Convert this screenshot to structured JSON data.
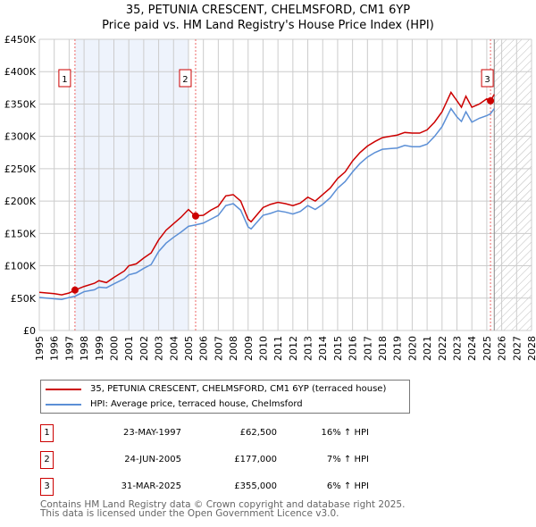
{
  "chart_data": {
    "type": "line",
    "title": "35, PETUNIA CRESCENT, CHELMSFORD, CM1 6YP",
    "subtitle": "Price paid vs. HM Land Registry's House Price Index (HPI)",
    "xlim": [
      1995,
      2028
    ],
    "ylim": [
      0,
      450000
    ],
    "yticks": [
      {
        "v": 0,
        "label": "£0"
      },
      {
        "v": 50000,
        "label": "£50K"
      },
      {
        "v": 100000,
        "label": "£100K"
      },
      {
        "v": 150000,
        "label": "£150K"
      },
      {
        "v": 200000,
        "label": "£200K"
      },
      {
        "v": 250000,
        "label": "£250K"
      },
      {
        "v": 300000,
        "label": "£300K"
      },
      {
        "v": 350000,
        "label": "£350K"
      },
      {
        "v": 400000,
        "label": "£400K"
      },
      {
        "v": 450000,
        "label": "£450K"
      }
    ],
    "xticks": [
      "1995",
      "1996",
      "1997",
      "1998",
      "1999",
      "2000",
      "2001",
      "2002",
      "2003",
      "2004",
      "2005",
      "2006",
      "2007",
      "2008",
      "2009",
      "2010",
      "2011",
      "2012",
      "2013",
      "2014",
      "2015",
      "2016",
      "2017",
      "2018",
      "2019",
      "2020",
      "2021",
      "2022",
      "2023",
      "2024",
      "2025",
      "2026",
      "2027",
      "2028"
    ],
    "shaded_range": [
      1997.4,
      2005.0
    ],
    "forecast_from": 2025.5,
    "series": [
      {
        "name": "35, PETUNIA CRESCENT, CHELMSFORD, CM1 6YP (terraced house)",
        "color": "#cc0000",
        "x": [
          1995,
          1996,
          1996.5,
          1997,
          1997.4,
          1998,
          1998.7,
          1999,
          1999.5,
          2000,
          2000.7,
          2001,
          2001.5,
          2002,
          2002.5,
          2003,
          2003.5,
          2004,
          2004.5,
          2005,
          2005.45,
          2006,
          2006.5,
          2007,
          2007.5,
          2008,
          2008.5,
          2009,
          2009.2,
          2010,
          2010.5,
          2011,
          2011.5,
          2012,
          2012.5,
          2013,
          2013.5,
          2014,
          2014.5,
          2015,
          2015.5,
          2016,
          2016.5,
          2017,
          2017.5,
          2018,
          2018.5,
          2019,
          2019.5,
          2020,
          2020.5,
          2021,
          2021.5,
          2022,
          2022.6,
          2023,
          2023.3,
          2023.6,
          2024,
          2024.5,
          2025,
          2025.25,
          2025.5
        ],
        "y": [
          59000,
          57000,
          55000,
          58000,
          62500,
          68000,
          73000,
          77000,
          74000,
          82000,
          92000,
          100000,
          103000,
          112000,
          120000,
          140000,
          155000,
          165000,
          175000,
          187000,
          177000,
          178000,
          186000,
          192000,
          208000,
          210000,
          200000,
          172000,
          168000,
          190000,
          195000,
          198000,
          196000,
          193000,
          197000,
          206000,
          200000,
          210000,
          220000,
          235000,
          245000,
          262000,
          275000,
          285000,
          292000,
          298000,
          300000,
          302000,
          306000,
          305000,
          305000,
          310000,
          322000,
          338000,
          368000,
          355000,
          345000,
          362000,
          345000,
          350000,
          358000,
          355000,
          365000
        ]
      },
      {
        "name": "HPI: Average price, terraced house, Chelmsford",
        "color": "#5b8fd6",
        "x": [
          1995,
          1996,
          1996.5,
          1997,
          1997.4,
          1998,
          1998.7,
          1999,
          1999.5,
          2000,
          2000.7,
          2001,
          2001.5,
          2002,
          2002.5,
          2003,
          2003.5,
          2004,
          2004.5,
          2005,
          2005.45,
          2006,
          2006.5,
          2007,
          2007.5,
          2008,
          2008.5,
          2009,
          2009.2,
          2010,
          2010.5,
          2011,
          2011.5,
          2012,
          2012.5,
          2013,
          2013.5,
          2014,
          2014.5,
          2015,
          2015.5,
          2016,
          2016.5,
          2017,
          2017.5,
          2018,
          2018.5,
          2019,
          2019.5,
          2020,
          2020.5,
          2021,
          2021.5,
          2022,
          2022.6,
          2023,
          2023.3,
          2023.6,
          2024,
          2024.5,
          2025,
          2025.25,
          2025.5
        ],
        "y": [
          51000,
          49000,
          48000,
          51000,
          53000,
          60000,
          63000,
          67000,
          66000,
          72000,
          80000,
          86000,
          89000,
          96000,
          102000,
          122000,
          135000,
          144000,
          152000,
          161000,
          163000,
          166000,
          172000,
          178000,
          193000,
          196000,
          186000,
          160000,
          157000,
          178000,
          181000,
          185000,
          183000,
          180000,
          184000,
          193000,
          187000,
          195000,
          205000,
          220000,
          230000,
          245000,
          258000,
          268000,
          275000,
          280000,
          281000,
          282000,
          286000,
          284000,
          284000,
          288000,
          300000,
          315000,
          343000,
          330000,
          323000,
          338000,
          322000,
          328000,
          332000,
          335000,
          343000
        ]
      }
    ],
    "sales": [
      {
        "label": "1",
        "x": 1997.39,
        "y": 62500
      },
      {
        "label": "2",
        "x": 2005.48,
        "y": 177000
      },
      {
        "label": "3",
        "x": 2025.25,
        "y": 355000
      }
    ]
  },
  "table": [
    {
      "num": "1",
      "date": "23-MAY-1997",
      "price": "£62,500",
      "hpi": "16% ↑ HPI"
    },
    {
      "num": "2",
      "date": "24-JUN-2005",
      "price": "£177,000",
      "hpi": "7% ↑ HPI"
    },
    {
      "num": "3",
      "date": "31-MAR-2025",
      "price": "£355,000",
      "hpi": "6% ↑ HPI"
    }
  ],
  "footer": {
    "line1": "Contains HM Land Registry data © Crown copyright and database right 2025.",
    "line2": "This data is licensed under the Open Government Licence v3.0."
  }
}
